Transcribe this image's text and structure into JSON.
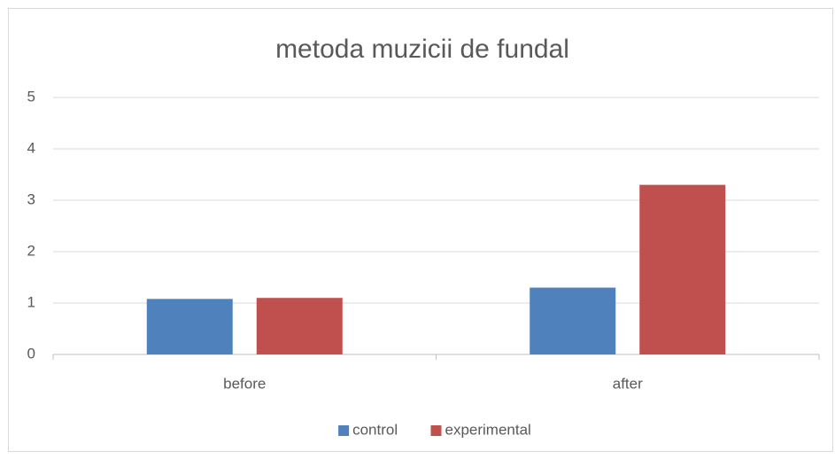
{
  "chart_data": {
    "type": "bar",
    "title": "metoda muzicii de fundal",
    "categories": [
      "before",
      "after"
    ],
    "series": [
      {
        "name": "control",
        "color": "#4f81bd",
        "values": [
          1.08,
          1.3
        ]
      },
      {
        "name": "experimental",
        "color": "#c0504d",
        "values": [
          1.1,
          3.3
        ]
      }
    ],
    "ylim": [
      0,
      5
    ],
    "yticks": [
      0,
      1,
      2,
      3,
      4,
      5
    ],
    "grid": true,
    "legend": "bottom"
  }
}
